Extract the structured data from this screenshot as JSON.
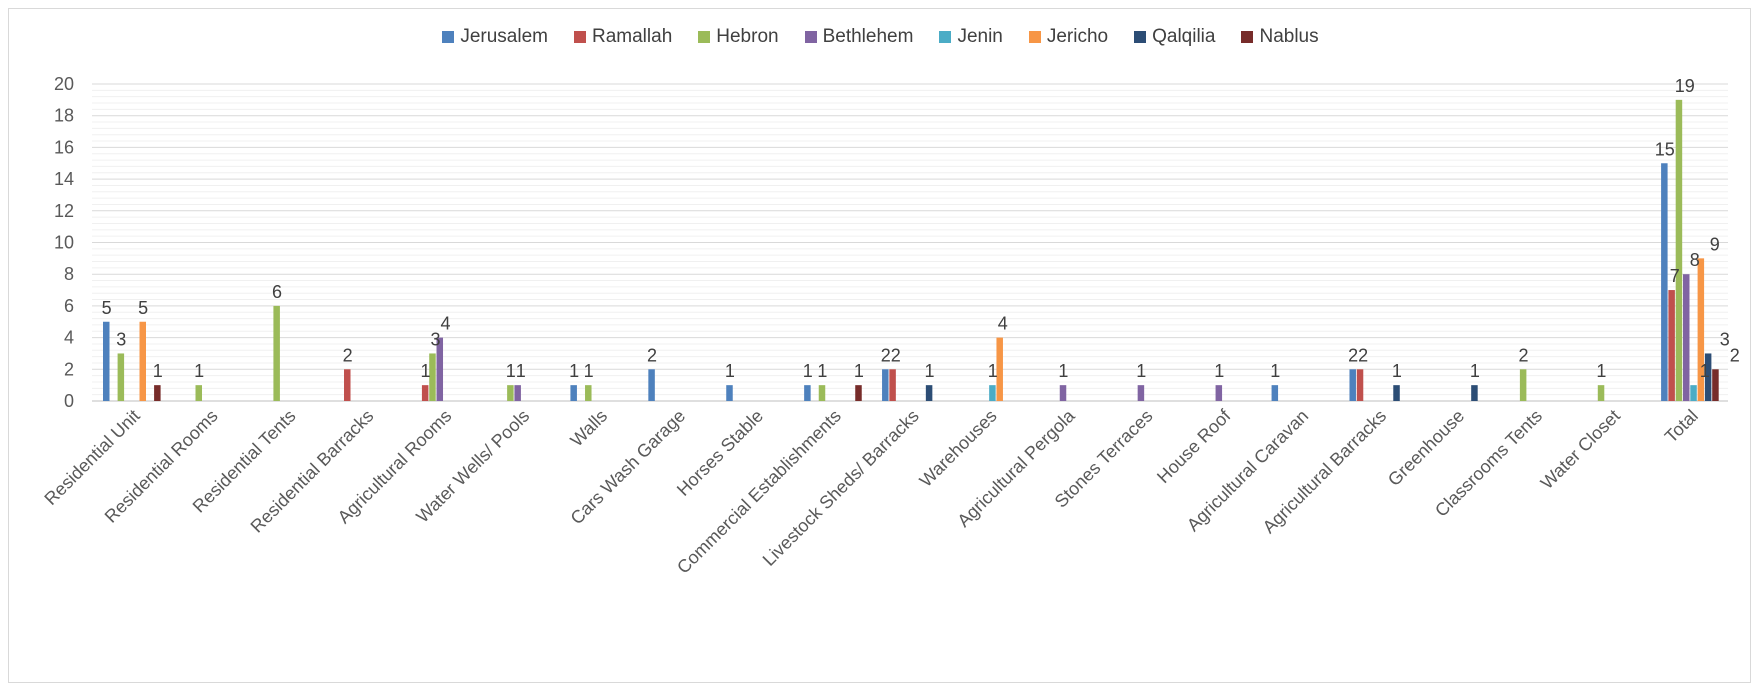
{
  "chart_data": {
    "type": "bar",
    "categories": [
      "Residential Unit",
      "Residential Rooms",
      "Residential Tents",
      "Residential Barracks",
      "Agricultural Rooms",
      "Water Wells/ Pools",
      "Walls",
      "Cars Wash Garage",
      "Horses Stable",
      "Commercial Establishments",
      "Livestock Sheds/ Barracks",
      "Warehouses",
      "Agricultural Pergola",
      "Stones Terraces",
      "House Roof",
      "Agricultural Caravan",
      "Agricultural Barracks",
      "Greenhouse",
      "Classrooms Tents",
      "Water Closet",
      "Total"
    ],
    "series": [
      {
        "name": "Jerusalem",
        "color": "#4e81bd",
        "values": [
          5,
          null,
          null,
          null,
          null,
          null,
          1,
          2,
          1,
          1,
          2,
          null,
          null,
          null,
          null,
          1,
          2,
          null,
          null,
          null,
          15
        ]
      },
      {
        "name": "Ramallah",
        "color": "#c0504d",
        "values": [
          null,
          null,
          null,
          2,
          1,
          null,
          null,
          null,
          null,
          null,
          2,
          null,
          null,
          null,
          null,
          null,
          2,
          null,
          null,
          null,
          7
        ]
      },
      {
        "name": "Hebron",
        "color": "#9bbb59",
        "values": [
          3,
          1,
          6,
          null,
          3,
          1,
          1,
          null,
          null,
          1,
          null,
          null,
          null,
          null,
          null,
          null,
          null,
          null,
          2,
          1,
          19
        ]
      },
      {
        "name": "Bethlehem",
        "color": "#8064a2",
        "values": [
          null,
          null,
          null,
          null,
          4,
          1,
          null,
          null,
          null,
          null,
          null,
          null,
          1,
          1,
          1,
          null,
          null,
          null,
          null,
          null,
          8
        ]
      },
      {
        "name": "Jenin",
        "color": "#4bacc6",
        "values": [
          null,
          null,
          null,
          null,
          null,
          null,
          null,
          null,
          null,
          null,
          null,
          1,
          null,
          null,
          null,
          null,
          null,
          null,
          null,
          null,
          1
        ]
      },
      {
        "name": "Jericho",
        "color": "#f79646",
        "values": [
          5,
          null,
          null,
          null,
          null,
          null,
          null,
          null,
          null,
          null,
          null,
          4,
          null,
          null,
          null,
          null,
          null,
          null,
          null,
          null,
          9
        ]
      },
      {
        "name": "Qalqilia",
        "color": "#2c4d75",
        "values": [
          null,
          null,
          null,
          null,
          null,
          null,
          null,
          null,
          null,
          null,
          1,
          null,
          null,
          null,
          null,
          null,
          1,
          1,
          null,
          null,
          3
        ]
      },
      {
        "name": "Nablus",
        "color": "#772c2a",
        "values": [
          1,
          null,
          null,
          null,
          null,
          null,
          null,
          null,
          null,
          1,
          null,
          null,
          null,
          null,
          null,
          null,
          null,
          null,
          null,
          null,
          2
        ]
      }
    ],
    "y_ticks": [
      "0",
      "2",
      "4",
      "6",
      "8",
      "10",
      "12",
      "14",
      "16",
      "18",
      "20"
    ],
    "ylim": [
      0,
      20
    ],
    "title": "",
    "xlabel": "",
    "ylabel": "",
    "grid": true,
    "legend_position": "top"
  }
}
